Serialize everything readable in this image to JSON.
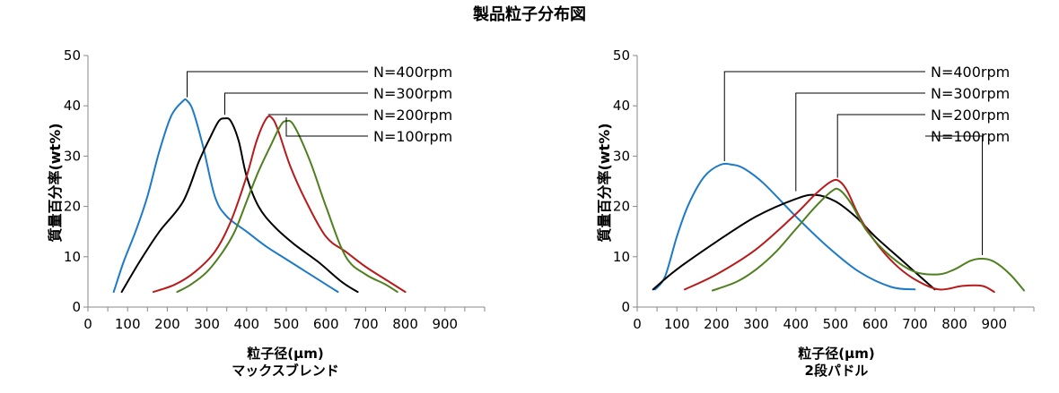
{
  "title": "製品粒子分布図",
  "chart_data": [
    {
      "type": "line",
      "subtitle": "マックスブレンド",
      "xlabel": "粒子径(μm)",
      "ylabel": "質量百分率(wt%)",
      "xlim": [
        0,
        1000
      ],
      "ylim": [
        0,
        50
      ],
      "xticks": [
        0,
        100,
        200,
        300,
        400,
        500,
        600,
        700,
        800,
        900
      ],
      "yticks": [
        0,
        10,
        20,
        30,
        40,
        50
      ],
      "grid": false,
      "legend_position": "top-right, labels with leader lines to peaks",
      "series": [
        {
          "name": "N=400rpm",
          "color": "#1c7ac7",
          "x": [
            65,
            90,
            120,
            150,
            180,
            210,
            240,
            250,
            265,
            290,
            320,
            350,
            400,
            450,
            500,
            550,
            600,
            630
          ],
          "y": [
            3,
            9,
            15,
            22,
            31,
            38,
            41,
            41,
            39,
            32,
            22,
            18,
            15,
            12,
            9.5,
            7,
            4.5,
            3
          ]
        },
        {
          "name": "N=300rpm",
          "color": "#000000",
          "x": [
            85,
            130,
            180,
            240,
            280,
            310,
            330,
            345,
            360,
            380,
            400,
            430,
            470,
            520,
            580,
            640,
            680
          ],
          "y": [
            3,
            9,
            15,
            21,
            29,
            34,
            37,
            37.5,
            37,
            33,
            26,
            20,
            16,
            12.5,
            9,
            5,
            3
          ]
        },
        {
          "name": "N=200rpm",
          "color": "#b81b1b",
          "x": [
            165,
            220,
            270,
            320,
            360,
            400,
            425,
            450,
            465,
            480,
            510,
            550,
            600,
            650,
            700,
            750,
            800
          ],
          "y": [
            3,
            4.5,
            7,
            11,
            17,
            26,
            33,
            37.5,
            37.5,
            35,
            28,
            21,
            14,
            11,
            8,
            5.5,
            3
          ]
        },
        {
          "name": "N=100rpm",
          "color": "#4f7f1f",
          "x": [
            225,
            260,
            300,
            340,
            370,
            400,
            430,
            460,
            485,
            500,
            520,
            560,
            600,
            650,
            700,
            750,
            780
          ],
          "y": [
            3,
            4.5,
            7,
            11,
            15,
            21,
            27,
            32,
            36,
            37,
            36,
            29,
            20,
            10,
            6.5,
            4.5,
            3
          ]
        }
      ]
    },
    {
      "type": "line",
      "subtitle": "2段パドル",
      "xlabel": "粒子径(μm)",
      "ylabel": "質量百分率(wt%)",
      "xlim": [
        0,
        1000
      ],
      "ylim": [
        0,
        50
      ],
      "xticks": [
        0,
        100,
        200,
        300,
        400,
        500,
        600,
        700,
        800,
        900
      ],
      "yticks": [
        0,
        10,
        20,
        30,
        40,
        50
      ],
      "grid": false,
      "legend_position": "top-right, labels with leader lines to peaks",
      "series": [
        {
          "name": "N=400rpm",
          "color": "#1c7ac7",
          "x": [
            45,
            70,
            100,
            130,
            170,
            210,
            240,
            270,
            320,
            400,
            480,
            560,
            640,
            700
          ],
          "y": [
            3.5,
            6,
            14,
            20.5,
            26,
            28.3,
            28.3,
            27.5,
            24.5,
            18,
            12,
            7,
            4,
            3.5
          ]
        },
        {
          "name": "N=300rpm",
          "color": "#000000",
          "x": [
            40,
            100,
            200,
            300,
            400,
            450,
            500,
            550,
            600,
            650,
            700,
            750
          ],
          "y": [
            3.5,
            7.5,
            13,
            18,
            21.5,
            22.3,
            21,
            18,
            14,
            10.5,
            7,
            3.5
          ]
        },
        {
          "name": "N=200rpm",
          "color": "#b81b1b",
          "x": [
            120,
            200,
            300,
            400,
            450,
            490,
            510,
            530,
            560,
            600,
            650,
            700,
            760,
            820,
            870,
            900
          ],
          "y": [
            3.5,
            6.5,
            11.5,
            18.5,
            22.5,
            25,
            25,
            23,
            18,
            13,
            8.5,
            5.5,
            3.5,
            4.2,
            4.2,
            3
          ]
        },
        {
          "name": "N=100rpm",
          "color": "#4f7f1f",
          "x": [
            190,
            250,
            300,
            350,
            400,
            450,
            490,
            510,
            540,
            580,
            640,
            700,
            760,
            800,
            840,
            870,
            900,
            940,
            975
          ],
          "y": [
            3.3,
            5,
            7.5,
            11,
            15.5,
            20,
            23,
            23.3,
            20.5,
            15,
            10,
            7,
            6.5,
            7.5,
            9.2,
            9.6,
            9,
            6.5,
            3.3
          ]
        }
      ]
    }
  ]
}
